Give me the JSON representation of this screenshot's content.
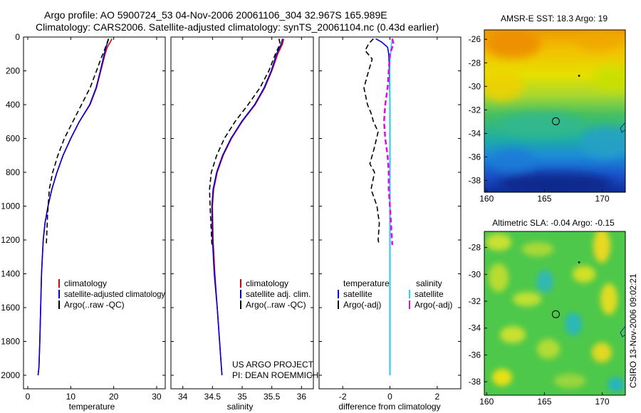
{
  "figure": {
    "title_line1": "Argo profile: AO 5900724_53 04-Nov-2006 20061106_304 32.967S 165.989E",
    "title_line2": "Climatology: CARS2006. Satellite-adjusted climatology: synTS_20061104.nc (0.43d earlier)",
    "footer_project": "US ARGO PROJECT",
    "footer_pi": "PI: DEAN ROEMMICH",
    "vertical_credit": "CSIRO 13-Nov-2006 09:02:21"
  },
  "colors": {
    "climatology": "#e00000",
    "satellite": "#0000dd",
    "argo": "#000000",
    "sat_salinity": "#00e5ee",
    "argo_salinity_adj": "#ee00ee"
  },
  "chart_data": [
    {
      "id": "temperature",
      "type": "line",
      "xlabel": "temperature",
      "ylabel": "",
      "xlim": [
        -1,
        32
      ],
      "ylim": [
        2080,
        0
      ],
      "y_reversed": true,
      "xticks": [
        0,
        10,
        20,
        30
      ],
      "yticks": [
        0,
        200,
        400,
        600,
        800,
        1000,
        1200,
        1400,
        1600,
        1800,
        2000
      ],
      "legend": [
        "climatology",
        "satellite-adjusted climatology",
        "Argo(..raw -QC)"
      ],
      "series": [
        {
          "name": "climatology",
          "style": "solid",
          "x": [
            19.6,
            19.2,
            18.5,
            18.0,
            17.0,
            16.0,
            14.5,
            12.0,
            10.0,
            8.2,
            6.8,
            5.6,
            4.7,
            4.0,
            3.6,
            3.2,
            3.0,
            2.8,
            2.6,
            2.4
          ],
          "y": [
            10,
            30,
            60,
            100,
            200,
            300,
            400,
            500,
            600,
            700,
            800,
            900,
            1000,
            1100,
            1200,
            1400,
            1600,
            1800,
            1950,
            2000
          ]
        },
        {
          "name": "satellite-adjusted climatology",
          "style": "solid",
          "x": [
            18.8,
            18.6,
            18.2,
            17.8,
            16.9,
            15.9,
            14.4,
            12.0,
            10.0,
            8.2,
            6.8,
            5.6,
            4.7,
            4.0,
            3.6,
            3.2,
            3.0,
            2.8,
            2.6,
            2.4
          ],
          "y": [
            10,
            30,
            60,
            100,
            200,
            300,
            400,
            500,
            600,
            700,
            800,
            900,
            1000,
            1100,
            1200,
            1400,
            1600,
            1800,
            1950,
            2000
          ]
        },
        {
          "name": "Argo(..raw -QC)",
          "style": "dashed",
          "x": [
            18.8,
            18.4,
            17.8,
            17.0,
            16.0,
            14.5,
            12.5,
            10.5,
            8.5,
            7.0,
            5.8,
            5.0,
            4.6,
            4.3
          ],
          "y": [
            10,
            40,
            80,
            130,
            200,
            300,
            400,
            500,
            600,
            700,
            800,
            900,
            1050,
            1230
          ]
        }
      ]
    },
    {
      "id": "salinity",
      "type": "line",
      "xlabel": "salinity",
      "ylabel": "",
      "xlim": [
        33.8,
        36.2
      ],
      "ylim": [
        2080,
        0
      ],
      "y_reversed": true,
      "xticks": [
        34,
        34.5,
        35,
        35.5,
        36
      ],
      "legend": [
        "climatology",
        "satellite adj. clim.",
        "Argo(..raw -QC)"
      ],
      "series": [
        {
          "name": "climatology",
          "style": "solid",
          "x": [
            35.7,
            35.68,
            35.6,
            35.5,
            35.38,
            35.22,
            35.0,
            34.82,
            34.68,
            34.58,
            34.52,
            34.5,
            34.51,
            34.54,
            34.58,
            34.62,
            34.65,
            34.66
          ],
          "y": [
            10,
            40,
            100,
            200,
            300,
            400,
            500,
            600,
            700,
            800,
            900,
            1000,
            1200,
            1400,
            1600,
            1800,
            1950,
            2000
          ]
        },
        {
          "name": "satellite adj. clim.",
          "style": "solid",
          "x": [
            35.68,
            35.66,
            35.58,
            35.49,
            35.37,
            35.21,
            34.99,
            34.81,
            34.67,
            34.57,
            34.51,
            34.49,
            34.5,
            34.53,
            34.58,
            34.62,
            34.65,
            34.66
          ],
          "y": [
            10,
            40,
            100,
            200,
            300,
            400,
            500,
            600,
            700,
            800,
            900,
            1000,
            1200,
            1400,
            1600,
            1800,
            1950,
            2000
          ]
        },
        {
          "name": "Argo(..raw -QC)",
          "style": "dashed",
          "x": [
            35.62,
            35.64,
            35.56,
            35.45,
            35.3,
            35.1,
            34.88,
            34.7,
            34.57,
            34.48,
            34.45,
            34.46,
            34.49
          ],
          "y": [
            10,
            40,
            100,
            200,
            300,
            400,
            500,
            600,
            700,
            800,
            900,
            1000,
            1230
          ]
        }
      ]
    },
    {
      "id": "difference",
      "type": "line",
      "xlabel": "difference from climatology",
      "ylabel": "",
      "xlim": [
        -3.0,
        3.0
      ],
      "ylim": [
        2080,
        0
      ],
      "y_reversed": true,
      "xticks": [
        -2,
        0,
        2
      ],
      "legend_headers": [
        "temperature",
        "salinity"
      ],
      "legend": [
        "satellite",
        "Argo(-adj)",
        "satellite",
        "Argo(-adj)"
      ],
      "series": [
        {
          "name": "temperature satellite",
          "group": "temperature",
          "style": "solid",
          "x": [
            -0.6,
            -0.35,
            -0.1,
            -0.05,
            -0.02,
            0.0,
            0.0,
            0.0,
            0.0,
            0.0,
            0.0,
            0.0,
            0.0
          ],
          "y": [
            10,
            30,
            60,
            100,
            200,
            400,
            600,
            800,
            1000,
            1200,
            1500,
            1800,
            2000
          ]
        },
        {
          "name": "temperature Argo(-adj)",
          "group": "temperature",
          "style": "dashed",
          "x": [
            -0.7,
            -0.9,
            -1.05,
            -0.75,
            -0.9,
            -1.1,
            -0.95,
            -0.8,
            -0.7,
            -0.5,
            -0.65,
            -0.85,
            -0.65,
            -0.8,
            -0.55,
            -0.45,
            -0.5,
            -0.45
          ],
          "y": [
            10,
            40,
            80,
            130,
            200,
            300,
            400,
            450,
            500,
            560,
            650,
            750,
            800,
            900,
            1000,
            1100,
            1200,
            1230
          ]
        },
        {
          "name": "salinity satellite",
          "group": "salinity",
          "style": "solid",
          "x": [
            0.1,
            0.05,
            0.0,
            0.0,
            0.0,
            0.0,
            0.0,
            0.0
          ],
          "y": [
            10,
            60,
            150,
            400,
            800,
            1200,
            1600,
            2000
          ]
        },
        {
          "name": "salinity Argo(-adj)",
          "group": "salinity",
          "style": "dashed",
          "x": [
            0.1,
            0.15,
            0.0,
            -0.05,
            -0.1,
            -0.2,
            -0.25,
            -0.2,
            -0.1,
            -0.05,
            -0.05,
            0.0,
            0.1
          ],
          "y": [
            10,
            40,
            100,
            200,
            300,
            400,
            500,
            600,
            700,
            800,
            900,
            1000,
            1230
          ]
        }
      ]
    },
    {
      "id": "sst_map",
      "type": "heatmap",
      "title": "AMSR-E SST: 18.3 Argo: 19",
      "xlim": [
        159.8,
        172.0
      ],
      "ylim": [
        -39.0,
        -25.2
      ],
      "xticks": [
        160,
        165,
        170
      ],
      "yticks": [
        -26,
        -28,
        -30,
        -32,
        -34,
        -36,
        -38
      ],
      "profile_location": {
        "lon": 165.989,
        "lat": -32.967
      }
    },
    {
      "id": "sla_map",
      "type": "heatmap",
      "title": "Altimetric SLA: -0.04 Argo: -0.15",
      "xlim": [
        159.8,
        172.0
      ],
      "ylim": [
        -39.0,
        -26.8
      ],
      "xticks": [
        160,
        165,
        170
      ],
      "yticks": [
        -28,
        -30,
        -32,
        -34,
        -36,
        -38
      ],
      "profile_location": {
        "lon": 165.989,
        "lat": -32.967
      }
    }
  ]
}
